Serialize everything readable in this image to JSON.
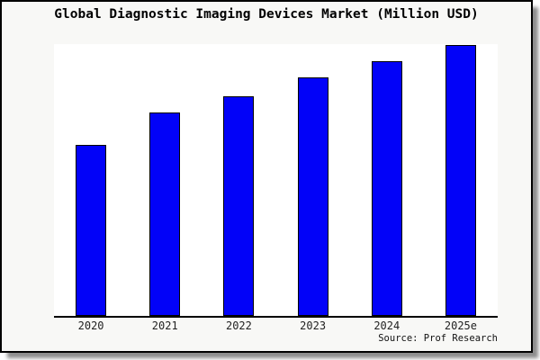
{
  "window": {
    "background_color": "#f8f8f6",
    "frame_border_color": "#000000",
    "shadow_color": "#999999",
    "plot_background_color": "#ffffff"
  },
  "chart_data": {
    "type": "bar",
    "title": "Global Diagnostic Imaging Devices Market (Million USD)",
    "categories": [
      "2020",
      "2021",
      "2022",
      "2023",
      "2024",
      "2025e"
    ],
    "values": [
      63,
      75,
      81,
      88,
      94,
      100
    ],
    "values_unit": "relative index estimated from bar heights (no y-axis labels shown; 2025e bar = 100)",
    "xlabel": "",
    "ylabel": "",
    "y_axis_visible": false,
    "grid": false,
    "legend": false,
    "bar_color": "#0202f8",
    "bar_border_color": "#000000",
    "source_note": "Source: Prof Research"
  }
}
